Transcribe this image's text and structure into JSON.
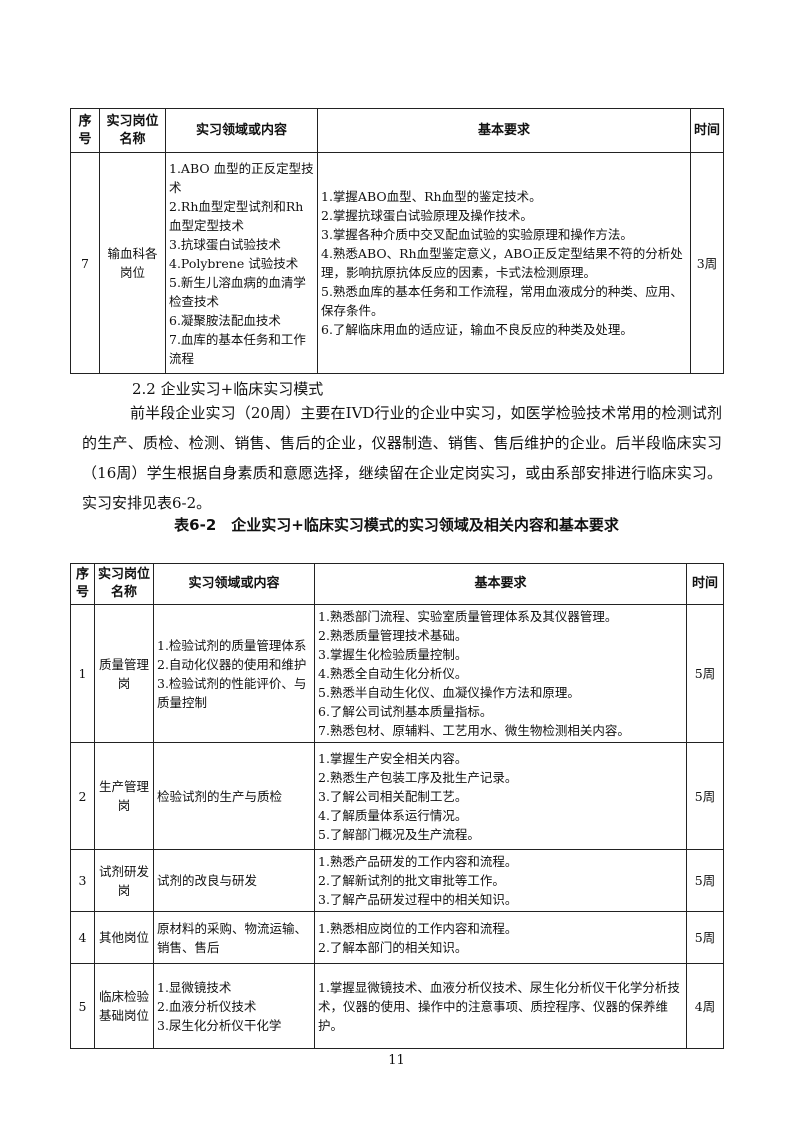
{
  "headers1": {
    "no": "序号",
    "post": "实习岗位名称",
    "area": "实习领域或内容",
    "req": "基本要求",
    "time": "时间"
  },
  "table1": [
    {
      "no": "7",
      "post": "输血科各岗位",
      "area": [
        "1.ABO 血型的正反定型技术",
        "2.Rh血型定型试剂和Rh血型定型技术",
        "3.抗球蛋白试验技术",
        "4.Polybrene 试验技术",
        "5.新生儿溶血病的血清学检查技术",
        "6.凝聚胺法配血技术",
        "7.血库的基本任务和工作流程"
      ],
      "req": [
        "1.掌握ABO血型、Rh血型的鉴定技术。",
        "2.掌握抗球蛋白试验原理及操作技术。",
        "3.掌握各种介质中交叉配血试验的实验原理和操作方法。",
        "4.熟悉ABO、Rh血型鉴定意义，ABO正反定型结果不符的分析处理，影响抗原抗体反应的因素，卡式法检测原理。",
        "5.熟悉血库的基本任务和工作流程，常用血液成分的种类、应用、保存条件。",
        "6.了解临床用血的适应证，输血不良反应的种类及处理。"
      ],
      "time": "3周"
    }
  ],
  "section_heading": "2.2 企业实习+临床实习模式",
  "paragraph": "前半段企业实习（20周）主要在IVD行业的企业中实习，如医学检验技术常用的检测试剂的生产、质检、检测、销售、售后的企业，仪器制造、销售、售后维护的企业。后半段临床实习（16周）学生根据自身素质和意愿选择，继续留在企业定岗实习，或由系部安排进行临床实习。实习安排见表6-2。",
  "table2_caption": "表6-2　企业实习+临床实习模式的实习领域及相关内容和基本要求",
  "headers2": {
    "no": "序号",
    "post": "实习岗位名称",
    "area": "实习领域或内容",
    "req": "基本要求",
    "time": "时间"
  },
  "table2": [
    {
      "no": "1",
      "post": "质量管理岗",
      "area": [
        "1.检验试剂的质量管理体系",
        "2.自动化仪器的使用和维护",
        "3.检验试剂的性能评价、与质量控制"
      ],
      "req": [
        "1.熟悉部门流程、实验室质量管理体系及其仪器管理。",
        "2.熟悉质量管理技术基础。",
        "3.掌握生化检验质量控制。",
        "4.熟悉全自动生化分析仪。",
        "5.熟悉半自动生化仪、血凝仪操作方法和原理。",
        "6.了解公司试剂基本质量指标。",
        "7.熟悉包材、原辅料、工艺用水、微生物检测相关内容。"
      ],
      "time": "5周"
    },
    {
      "no": "2",
      "post": "生产管理岗",
      "area": [
        "检验试剂的生产与质检"
      ],
      "req": [
        "1.掌握生产安全相关内容。",
        "2.熟悉生产包装工序及批生产记录。",
        "3.了解公司相关配制工艺。",
        "4.了解质量体系运行情况。",
        "5.了解部门概况及生产流程。"
      ],
      "time": "5周"
    },
    {
      "no": "3",
      "post": "试剂研发岗",
      "area": [
        "试剂的改良与研发"
      ],
      "req": [
        "1.熟悉产品研发的工作内容和流程。",
        "2.了解新试剂的批文审批等工作。",
        "3.了解产品研发过程中的相关知识。"
      ],
      "time": "5周"
    },
    {
      "no": "4",
      "post": "其他岗位",
      "area": [
        "原材料的采购、物流运输、销售、售后"
      ],
      "req": [
        "1.熟悉相应岗位的工作内容和流程。",
        "2.了解本部门的相关知识。"
      ],
      "time": "5周"
    },
    {
      "no": "5",
      "post": "临床检验基础岗位",
      "area": [
        "1.显微镜技术",
        "2.血液分析仪技术",
        "3.尿生化分析仪干化学"
      ],
      "req": [
        "1.掌握显微镜技术、血液分析仪技术、尿生化分析仪干化学分析技术，仪器的使用、操作中的注意事项、质控程序、仪器的保养维护。"
      ],
      "time": "4周"
    }
  ],
  "page_number": "11"
}
